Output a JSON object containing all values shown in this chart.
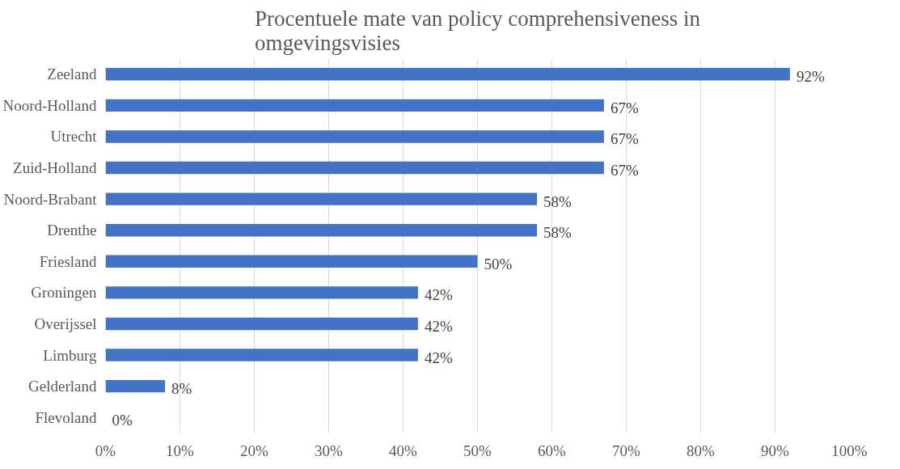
{
  "chart_data": {
    "type": "bar",
    "orientation": "horizontal",
    "title": "Procentuele mate van policy comprehensiveness in omgevingsvisies",
    "categories": [
      "Zeeland",
      "Noord-Holland",
      "Utrecht",
      "Zuid-Holland",
      "Noord-Brabant",
      "Drenthe",
      "Friesland",
      "Groningen",
      "Overijssel",
      "Limburg",
      "Gelderland",
      "Flevoland"
    ],
    "values": [
      92,
      67,
      67,
      67,
      58,
      58,
      50,
      42,
      42,
      42,
      8,
      0
    ],
    "value_labels": [
      "92%",
      "67%",
      "67%",
      "67%",
      "58%",
      "58%",
      "50%",
      "42%",
      "42%",
      "42%",
      "8%",
      "0%"
    ],
    "color": "#4472c4",
    "xlim": [
      0,
      100
    ],
    "xticks": [
      {
        "value": 0,
        "label": "0%"
      },
      {
        "value": 10,
        "label": "10%"
      },
      {
        "value": 20,
        "label": "20%"
      },
      {
        "value": 30,
        "label": "30%"
      },
      {
        "value": 40,
        "label": "40%"
      },
      {
        "value": 50,
        "label": "50%"
      },
      {
        "value": 60,
        "label": "60%"
      },
      {
        "value": 70,
        "label": "70%"
      },
      {
        "value": 80,
        "label": "80%"
      },
      {
        "value": 90,
        "label": "90%"
      },
      {
        "value": 100,
        "label": "100%"
      }
    ],
    "grid": "x"
  }
}
